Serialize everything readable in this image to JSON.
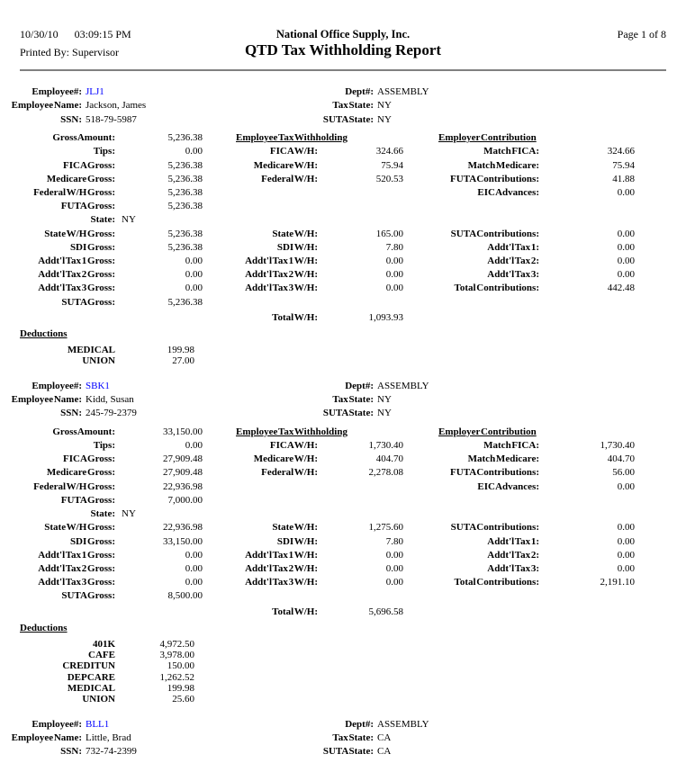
{
  "header": {
    "date": "10/30/10",
    "time": "03:09:15 PM",
    "company": "National Office Supply, Inc.",
    "page": "Page 1 of 8",
    "printed_by_label": "Printed By:",
    "printed_by": "Supervisor",
    "title": "QTD Tax Withholding Report"
  },
  "colors": {
    "employee_id": "#0000ff",
    "divider": "#808080",
    "text": "#000000",
    "background": "#ffffff"
  },
  "labels": {
    "employee_no": "Employee#:",
    "employee_name": "Employee Name:",
    "ssn": "SSN:",
    "dept": "Dept#:",
    "tax_state": "Tax State:",
    "suta_state": "SUTA State:",
    "employee_tax_withholding": "Employee Tax Withholding",
    "employer_contribution": "Employer Contribution",
    "deductions": "Deductions"
  },
  "employees": [
    {
      "id": "JLJ1",
      "name": "Jackson, James",
      "ssn": "518-79-5987",
      "dept": "ASSEMBLY",
      "tax_state": "NY",
      "suta_state": "NY",
      "grid": [
        {
          "c1": [
            "Gross Amount:",
            "5,236.38"
          ],
          "headers": true
        },
        {
          "c1": [
            "Tips:",
            "0.00"
          ],
          "c2": [
            "FICA W/H:",
            "324.66"
          ],
          "c3": [
            "Match FICA:",
            "324.66"
          ]
        },
        {
          "c1": [
            "FICA Gross:",
            "5,236.38"
          ],
          "c2": [
            "Medicare W/H:",
            "75.94"
          ],
          "c3": [
            "Match Medicare:",
            "75.94"
          ]
        },
        {
          "c1": [
            "Medicare Gross:",
            "5,236.38"
          ],
          "c2": [
            "Federal W/H:",
            "520.53"
          ],
          "c3": [
            "FUTA Contributions:",
            "41.88"
          ]
        },
        {
          "c1": [
            "Federal W/H Gross:",
            "5,236.38"
          ],
          "c3": [
            "EIC Advances:",
            "0.00"
          ]
        },
        {
          "c1": [
            "FUTA Gross:",
            "5,236.38"
          ]
        },
        {
          "c1": [
            "State:",
            "NY"
          ],
          "state": true
        },
        {
          "c1": [
            "State W/H Gross:",
            "5,236.38"
          ],
          "c2": [
            "State W/H:",
            "165.00"
          ],
          "c3": [
            "SUTA Contributions:",
            "0.00"
          ]
        },
        {
          "c1": [
            "SDI Gross:",
            "5,236.38"
          ],
          "c2": [
            "SDI W/H:",
            "7.80"
          ],
          "c3": [
            "Addt'l Tax 1:",
            "0.00"
          ]
        },
        {
          "c1": [
            "Addt'l Tax 1 Gross:",
            "0.00"
          ],
          "c2": [
            "Addt'l Tax 1 W/H:",
            "0.00"
          ],
          "c3": [
            "Addt'l Tax 2:",
            "0.00"
          ]
        },
        {
          "c1": [
            "Addt'l Tax 2 Gross:",
            "0.00"
          ],
          "c2": [
            "Addt'l Tax 2 W/H:",
            "0.00"
          ],
          "c3": [
            "Addt'l Tax 3:",
            "0.00"
          ]
        },
        {
          "c1": [
            "Addt'l Tax 3 Gross:",
            "0.00"
          ],
          "c2": [
            "Addt'l Tax 3 W/H:",
            "0.00"
          ],
          "c3": [
            "Total Contributions:",
            "442.48"
          ]
        },
        {
          "c1": [
            "SUTA Gross:",
            "5,236.38"
          ]
        },
        {
          "c2": [
            "Total W/H:",
            "1,093.93"
          ],
          "total": true
        }
      ],
      "deductions": [
        {
          "name": "MEDICAL",
          "amount": "199.98"
        },
        {
          "name": "UNION",
          "amount": "27.00"
        }
      ]
    },
    {
      "id": "SBK1",
      "name": "Kidd, Susan",
      "ssn": "245-79-2379",
      "dept": "ASSEMBLY",
      "tax_state": "NY",
      "suta_state": "NY",
      "grid": [
        {
          "c1": [
            "Gross Amount:",
            "33,150.00"
          ],
          "headers": true
        },
        {
          "c1": [
            "Tips:",
            "0.00"
          ],
          "c2": [
            "FICA W/H:",
            "1,730.40"
          ],
          "c3": [
            "Match FICA:",
            "1,730.40"
          ]
        },
        {
          "c1": [
            "FICA Gross:",
            "27,909.48"
          ],
          "c2": [
            "Medicare W/H:",
            "404.70"
          ],
          "c3": [
            "Match Medicare:",
            "404.70"
          ]
        },
        {
          "c1": [
            "Medicare Gross:",
            "27,909.48"
          ],
          "c2": [
            "Federal W/H:",
            "2,278.08"
          ],
          "c3": [
            "FUTA Contributions:",
            "56.00"
          ]
        },
        {
          "c1": [
            "Federal W/H Gross:",
            "22,936.98"
          ],
          "c3": [
            "EIC Advances:",
            "0.00"
          ]
        },
        {
          "c1": [
            "FUTA Gross:",
            "7,000.00"
          ]
        },
        {
          "c1": [
            "State:",
            "NY"
          ],
          "state": true
        },
        {
          "c1": [
            "State W/H Gross:",
            "22,936.98"
          ],
          "c2": [
            "State W/H:",
            "1,275.60"
          ],
          "c3": [
            "SUTA Contributions:",
            "0.00"
          ]
        },
        {
          "c1": [
            "SDI Gross:",
            "33,150.00"
          ],
          "c2": [
            "SDI W/H:",
            "7.80"
          ],
          "c3": [
            "Addt'l Tax 1:",
            "0.00"
          ]
        },
        {
          "c1": [
            "Addt'l Tax 1 Gross:",
            "0.00"
          ],
          "c2": [
            "Addt'l Tax 1 W/H:",
            "0.00"
          ],
          "c3": [
            "Addt'l Tax 2:",
            "0.00"
          ]
        },
        {
          "c1": [
            "Addt'l Tax 2 Gross:",
            "0.00"
          ],
          "c2": [
            "Addt'l Tax 2 W/H:",
            "0.00"
          ],
          "c3": [
            "Addt'l Tax 3:",
            "0.00"
          ]
        },
        {
          "c1": [
            "Addt'l Tax 3 Gross:",
            "0.00"
          ],
          "c2": [
            "Addt'l Tax 3 W/H:",
            "0.00"
          ],
          "c3": [
            "Total Contributions:",
            "2,191.10"
          ]
        },
        {
          "c1": [
            "SUTA Gross:",
            "8,500.00"
          ]
        },
        {
          "c2": [
            "Total W/H:",
            "5,696.58"
          ],
          "total": true
        }
      ],
      "deductions": [
        {
          "name": "401K",
          "amount": "4,972.50"
        },
        {
          "name": "CAFE",
          "amount": "3,978.00"
        },
        {
          "name": "CREDITUN",
          "amount": "150.00"
        },
        {
          "name": "DEP CARE",
          "amount": "1,262.52"
        },
        {
          "name": "MEDICAL",
          "amount": "199.98"
        },
        {
          "name": "UNION",
          "amount": "25.60"
        }
      ]
    },
    {
      "id": "BLL1",
      "name": "Little, Brad",
      "ssn": "732-74-2399",
      "dept": "ASSEMBLY",
      "tax_state": "CA",
      "suta_state": "CA",
      "grid": [],
      "deductions": []
    }
  ]
}
